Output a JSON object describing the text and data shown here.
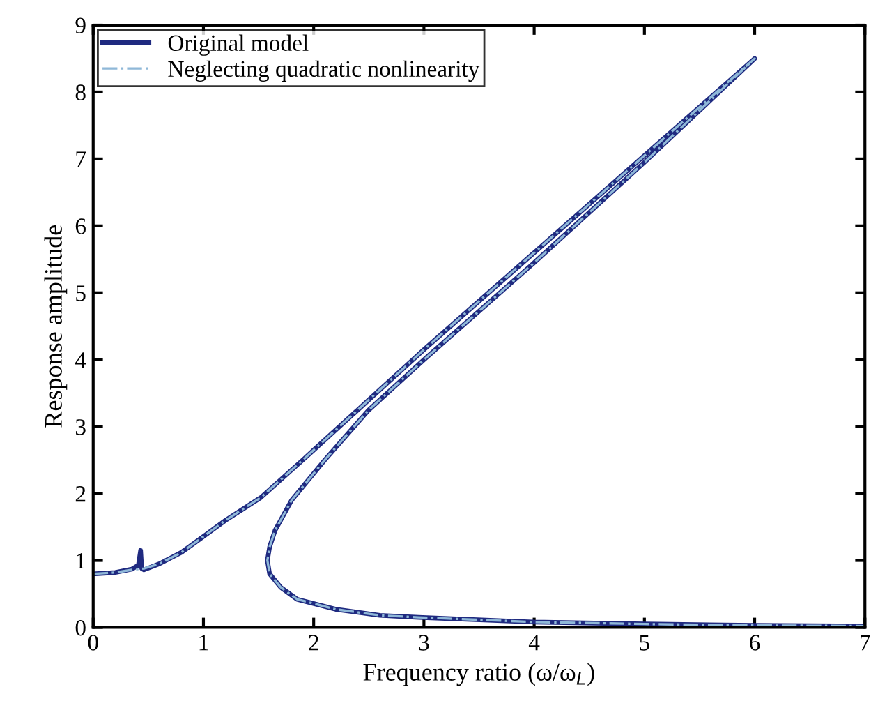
{
  "chart_data": {
    "type": "line",
    "xlabel": "Frequency ratio (ω/ω$_{L}$)",
    "ylabel": "Response amplitude",
    "xlim": [
      0,
      7
    ],
    "ylim": [
      0,
      9
    ],
    "xticks": [
      0,
      1,
      2,
      3,
      4,
      5,
      6,
      7
    ],
    "yticks": [
      0,
      1,
      2,
      3,
      4,
      5,
      6,
      7,
      8,
      9
    ],
    "grid": false,
    "legend": "top left",
    "marker": "none",
    "series": [
      {
        "name": "Original model",
        "color": "#1f2a80",
        "line_style": "solid",
        "x": [
          0,
          0.2,
          0.35,
          0.41,
          0.43,
          0.44,
          0.46,
          0.6,
          0.8,
          0.96,
          1.2,
          1.52,
          1.9,
          2.0,
          2.5,
          3,
          4,
          5,
          6,
          5,
          4,
          3,
          2.5,
          2.1,
          1.8,
          1.65,
          1.6,
          1.58,
          1.6,
          1.7,
          1.85,
          2.2,
          2.6,
          2.95,
          4,
          5,
          6,
          7
        ],
        "values": [
          0.8,
          0.82,
          0.87,
          0.93,
          1.15,
          0.88,
          0.86,
          0.95,
          1.12,
          1.31,
          1.6,
          1.94,
          2.5,
          2.65,
          3.4,
          4.15,
          5.6,
          7.05,
          8.5,
          6.95,
          5.45,
          4.0,
          3.25,
          2.5,
          1.9,
          1.45,
          1.2,
          1.0,
          0.8,
          0.6,
          0.42,
          0.27,
          0.18,
          0.15,
          0.08,
          0.05,
          0.03,
          0.02
        ]
      },
      {
        "name": "Neglecting quadratic nonlinearity",
        "color": "#8fb8d8",
        "line_style": "dashdot",
        "x": [
          0,
          0.2,
          0.35,
          0.46,
          0.6,
          0.8,
          0.96,
          1.2,
          1.52,
          1.9,
          2.0,
          2.5,
          3,
          4,
          5,
          6,
          5,
          4,
          3,
          2.5,
          2.1,
          1.8,
          1.65,
          1.6,
          1.58,
          1.6,
          1.7,
          1.85,
          2.2,
          2.6,
          2.95,
          4,
          5,
          6,
          7
        ],
        "values": [
          0.8,
          0.82,
          0.86,
          0.88,
          0.95,
          1.12,
          1.31,
          1.6,
          1.94,
          2.5,
          2.65,
          3.4,
          4.15,
          5.6,
          7.05,
          8.5,
          6.95,
          5.45,
          4.0,
          3.25,
          2.5,
          1.9,
          1.45,
          1.2,
          1.0,
          0.8,
          0.6,
          0.42,
          0.27,
          0.18,
          0.15,
          0.08,
          0.05,
          0.03,
          0.02
        ]
      }
    ]
  }
}
